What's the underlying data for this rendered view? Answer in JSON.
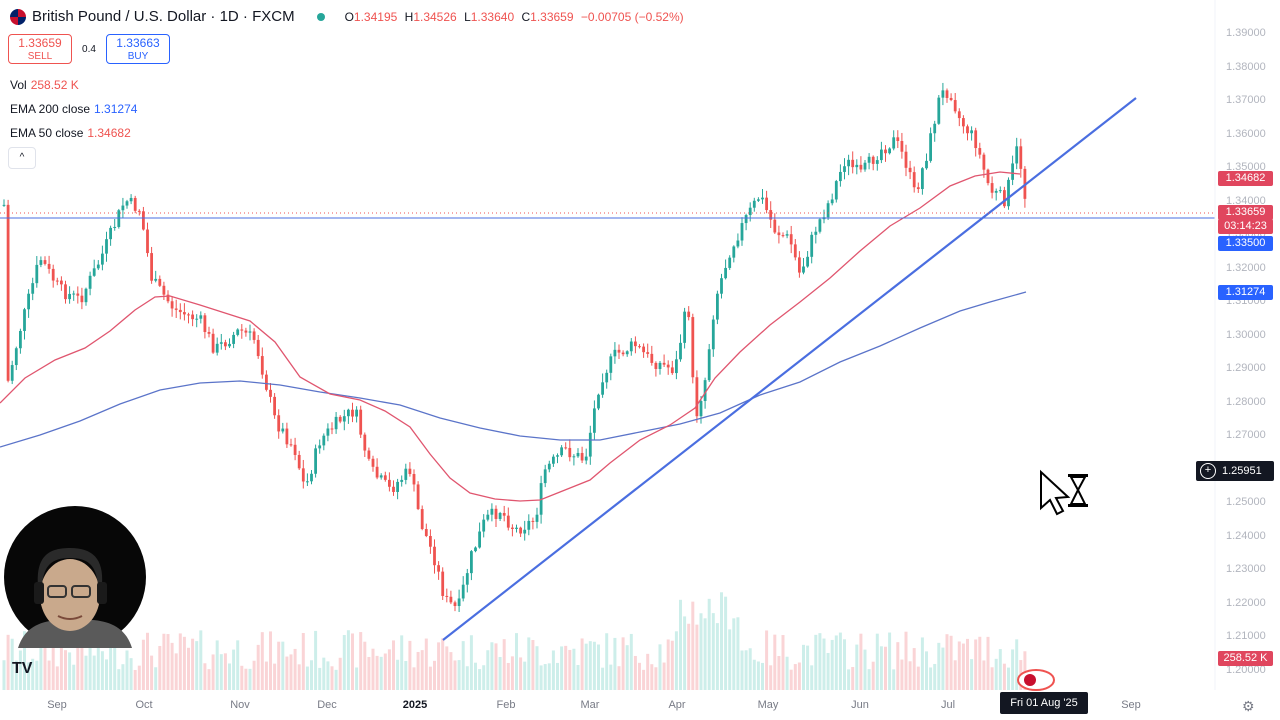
{
  "header": {
    "symbol_title": "British Pound / U.S. Dollar · 1D · FXCM",
    "open_key": "O",
    "open": "1.34195",
    "high_key": "H",
    "high": "1.34526",
    "low_key": "L",
    "low": "1.33640",
    "close_key": "C",
    "close": "1.33659",
    "change": "−0.00705 (−0.52%)"
  },
  "trade": {
    "sell_price": "1.33659",
    "sell_label": "SELL",
    "spread": "0.4",
    "buy_price": "1.33663",
    "buy_label": "BUY"
  },
  "indicators": {
    "vol_label": "Vol",
    "vol_value": "258.52 K",
    "ema200_label": "EMA 200 close",
    "ema200_value": "1.31274",
    "ema50_label": "EMA 50 close",
    "ema50_value": "1.34682",
    "collapse_glyph": "^"
  },
  "price_axis": {
    "ticks": [
      "1.39000",
      "1.38000",
      "1.37000",
      "1.36000",
      "1.35000",
      "1.34000",
      "1.33000",
      "1.32000",
      "1.31000",
      "1.30000",
      "1.29000",
      "1.28000",
      "1.27000",
      "1.26000",
      "1.25000",
      "1.24000",
      "1.23000",
      "1.22000",
      "1.21000",
      "1.20000"
    ],
    "ema50_label": "1.34682",
    "last_price": "1.33659",
    "countdown": "03:14:23",
    "horizontal_line": "1.33500",
    "ema200_label": "1.31274",
    "crosshair_price": "1.25951",
    "volume_label": "258.52 K"
  },
  "time_axis": {
    "ticks": [
      "Sep",
      "Oct",
      "Nov",
      "Dec",
      "2025",
      "Feb",
      "Mar",
      "Apr",
      "May",
      "Jun",
      "Jul",
      "Sep"
    ],
    "crosshair_date": "Fri 01 Aug '25"
  },
  "colors": {
    "up": "#26a69a",
    "down": "#ef5350",
    "ema50": "#e0566f",
    "ema200": "#5b74c9",
    "trendline": "#4a6ee0",
    "hline": "#4a6ee0",
    "dotted": "#ef5350",
    "cross_bg": "#131722"
  },
  "icons": {
    "logo": "tradingview-logo-icon",
    "cursor": "busy-cursor-icon",
    "settings": "gear-icon",
    "symbol": "gbp-usd-flag-icon"
  }
}
